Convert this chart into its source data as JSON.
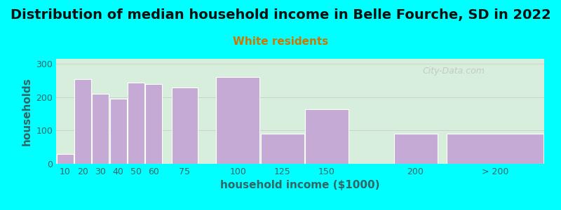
{
  "title": "Distribution of median household income in Belle Fourche, SD in 2022",
  "subtitle": "White residents",
  "xlabel": "household income ($1000)",
  "ylabel": "households",
  "bar_labels": [
    "10",
    "20",
    "30",
    "40",
    "50",
    "60",
    "75",
    "100",
    "125",
    "150",
    "200",
    "> 200"
  ],
  "bar_values": [
    30,
    255,
    210,
    195,
    243,
    240,
    228,
    260,
    90,
    163,
    90,
    90
  ],
  "bar_lefts": [
    10,
    20,
    30,
    40,
    50,
    60,
    75,
    100,
    125,
    150,
    200,
    230
  ],
  "bar_widths": [
    10,
    10,
    10,
    10,
    10,
    10,
    15,
    25,
    25,
    25,
    25,
    55
  ],
  "bar_color": "#c4aad4",
  "background_color": "#00ffff",
  "plot_bg_left": "#d8eedd",
  "plot_bg_right": "#f0f5f8",
  "yticks": [
    0,
    100,
    200,
    300
  ],
  "ylim": [
    0,
    315
  ],
  "xlim_left": 10,
  "xlim_right": 285,
  "title_fontsize": 14,
  "title_color": "#111111",
  "subtitle_color": "#cc7700",
  "subtitle_fontsize": 11,
  "axis_label_color": "#336666",
  "tick_label_color": "#336666",
  "tick_label_fontsize": 9,
  "watermark": "City-Data.com",
  "watermark_color": "#bbbbbb"
}
